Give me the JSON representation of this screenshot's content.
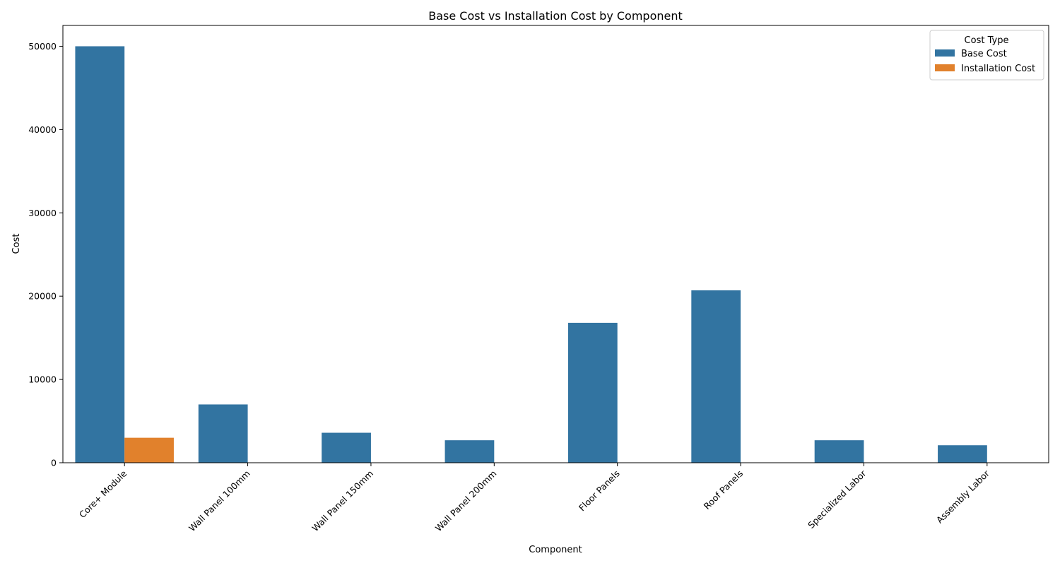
{
  "chart_data": {
    "type": "bar",
    "title": "Base Cost vs Installation Cost by Component",
    "xlabel": "Component",
    "ylabel": "Cost",
    "categories": [
      "Core+ Module",
      "Wall Panel 100mm",
      "Wall Panel 150mm",
      "Wall Panel 200mm",
      "Floor Panels",
      "Roof Panels",
      "Specialized Labor",
      "Assembly Labor"
    ],
    "series": [
      {
        "name": "Base Cost",
        "color": "#3274a1",
        "values": [
          50000,
          7000,
          3600,
          2700,
          16800,
          20700,
          2700,
          2100
        ]
      },
      {
        "name": "Installation Cost",
        "color": "#e1812c",
        "values": [
          3000,
          0,
          0,
          0,
          0,
          0,
          0,
          0
        ]
      }
    ],
    "ylim": [
      0,
      52500
    ],
    "yticks": [
      0,
      10000,
      20000,
      30000,
      40000,
      50000
    ],
    "grid": false,
    "legend": {
      "title": "Cost Type",
      "placement": "top-right"
    }
  }
}
